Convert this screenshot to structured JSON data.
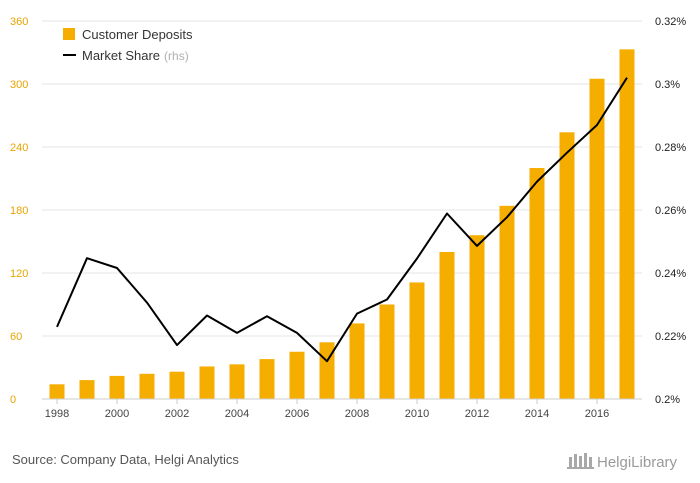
{
  "chart_data": {
    "type": "bar",
    "categories": [
      "1998",
      "1999",
      "2000",
      "2001",
      "2002",
      "2003",
      "2004",
      "2005",
      "2006",
      "2007",
      "2008",
      "2009",
      "2010",
      "2011",
      "2012",
      "2013",
      "2014",
      "2015",
      "2016",
      "2017"
    ],
    "series": [
      {
        "name": "Customer Deposits",
        "type": "bar",
        "axis": "left",
        "color": "#f5ae00",
        "values": [
          14,
          18,
          22,
          24,
          26,
          31,
          33,
          38,
          45,
          54,
          72,
          90,
          111,
          140,
          156,
          184,
          220,
          254,
          305,
          333
        ]
      },
      {
        "name": "Market Share",
        "type": "line",
        "axis": "right",
        "color": "#000000",
        "values": [
          0.2229,
          0.2447,
          0.2416,
          0.2306,
          0.2171,
          0.2265,
          0.221,
          0.2263,
          0.221,
          0.212,
          0.2271,
          0.2316,
          0.2446,
          0.2589,
          0.2486,
          0.2577,
          0.269,
          0.2782,
          0.287,
          0.302
        ]
      }
    ],
    "legend": {
      "position": "top-left",
      "items": [
        {
          "label": "Customer Deposits",
          "note": ""
        },
        {
          "label": "Market Share",
          "note": "(rhs)"
        }
      ]
    },
    "y_left": {
      "ylim": [
        0,
        360
      ],
      "ticks": [
        "0",
        "60",
        "120",
        "180",
        "240",
        "300",
        "360"
      ]
    },
    "y_right": {
      "ylim": [
        0.2,
        0.32
      ],
      "ticks": [
        "0.2%",
        "0.22%",
        "0.24%",
        "0.26%",
        "0.28%",
        "0.3%",
        "0.32%"
      ]
    },
    "x_tick_labels": [
      "1998",
      "2000",
      "2002",
      "2004",
      "2006",
      "2008",
      "2010",
      "2012",
      "2014",
      "2016"
    ],
    "grid": true
  },
  "footer": {
    "source": "Source: Company Data, Helgi Analytics",
    "logo": "HelgiLibrary"
  }
}
